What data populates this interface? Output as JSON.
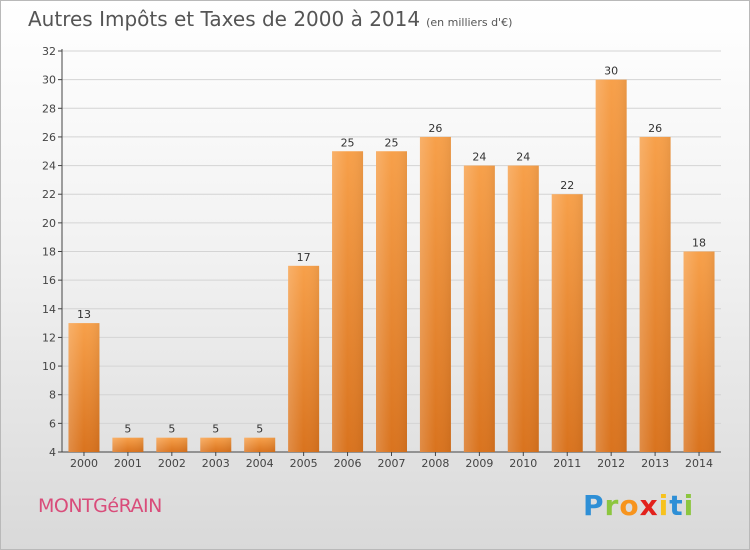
{
  "chart_data": {
    "type": "bar",
    "title": "Autres Impôts et Taxes de 2000 à 2014",
    "subtitle": "(en milliers d'€)",
    "categories": [
      "2000",
      "2001",
      "2002",
      "2003",
      "2004",
      "2005",
      "2006",
      "2007",
      "2008",
      "2009",
      "2010",
      "2011",
      "2012",
      "2013",
      "2014"
    ],
    "values": [
      13,
      5,
      5,
      5,
      5,
      17,
      25,
      25,
      26,
      24,
      24,
      22,
      30,
      26,
      18
    ],
    "value_labels": [
      "13",
      "5",
      "5",
      "5",
      "5",
      "17",
      "25",
      "25",
      "26",
      "24",
      "24",
      "22",
      "30",
      "26",
      "18"
    ],
    "ylim": [
      4,
      32
    ],
    "yticks": [
      4,
      6,
      8,
      10,
      12,
      14,
      16,
      18,
      20,
      22,
      24,
      26,
      28,
      30,
      32
    ],
    "ytick_labels": [
      "4",
      "6",
      "8",
      "10",
      "12",
      "14",
      "16",
      "18",
      "20",
      "22",
      "24",
      "26",
      "28",
      "30",
      "32"
    ],
    "xlabel": "",
    "ylabel": "",
    "grid": true,
    "legend": "none",
    "bar_color_top": "#f7a04a",
    "bar_color_bottom": "#d9731e"
  },
  "commune": "MONTGéRAIN",
  "logo": {
    "p": "P",
    "r": "r",
    "o": "o",
    "x": "x",
    "i1": "i",
    "t": "t",
    "i2": "i"
  },
  "colors": {
    "commune": "#d94c7a",
    "grid": "#d4d4d4",
    "axis": "#444444"
  }
}
